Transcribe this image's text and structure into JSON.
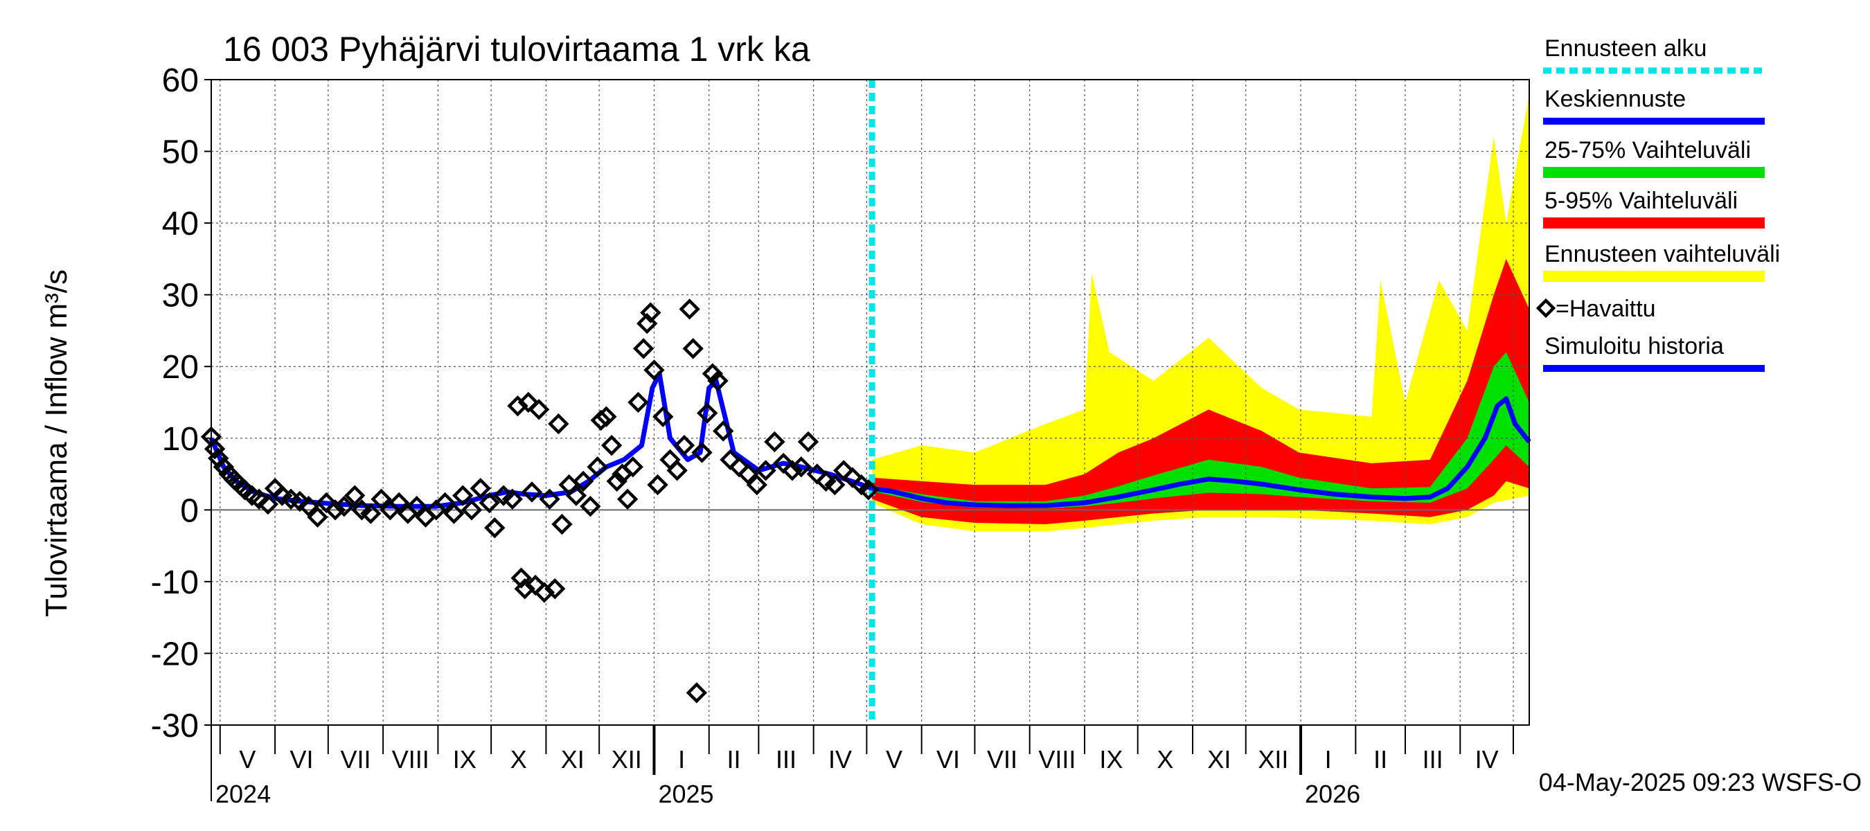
{
  "chart_data": {
    "type": "line",
    "title": "16 003 Pyhäjärvi tulovirtaama 1 vrk ka",
    "ylabel": "Tulovirtaama / Inflow    m³/s",
    "ylim": [
      -30,
      60
    ],
    "yticks": [
      -30,
      -20,
      -10,
      0,
      10,
      20,
      30,
      40,
      50,
      60
    ],
    "xlim": [
      "2024-04-26",
      "2026-05-10"
    ],
    "forecast_start": "2025-05-04",
    "grid": true,
    "month_labels": [
      "V",
      "VI",
      "VII",
      "VIII",
      "IX",
      "X",
      "XI",
      "XII",
      "I",
      "II",
      "III",
      "IV",
      "V",
      "VI",
      "VII",
      "VIII",
      "IX",
      "X",
      "XI",
      "XII",
      "I",
      "II",
      "III",
      "IV"
    ],
    "year_labels": [
      "2024",
      "2025",
      "2026"
    ],
    "timestamp": "04-May-2025 09:23 WSFS-O",
    "legend": {
      "placement": "right",
      "entries": [
        {
          "label": "Ennusteen alku",
          "color": "#00e5e5",
          "style": "dashed"
        },
        {
          "label": "Keskiennuste",
          "color": "#0000ff",
          "style": "line"
        },
        {
          "label": "25-75% Vaihteluväli",
          "color": "#00e000",
          "style": "band"
        },
        {
          "label": "5-95% Vaihteluväli",
          "color": "#ff0000",
          "style": "band"
        },
        {
          "label": "Ennusteen vaihteluväli",
          "color": "#ffff00",
          "style": "band"
        },
        {
          "label": "=Havaittu",
          "color": "#000000",
          "style": "diamond"
        },
        {
          "label": "Simuloitu historia",
          "color": "#0000ff",
          "style": "line"
        }
      ]
    },
    "series": [
      {
        "name": "Simuloitu historia",
        "color": "#0000ff",
        "points": [
          [
            "2024-04-26",
            10
          ],
          [
            "2024-05-03",
            6
          ],
          [
            "2024-05-10",
            4
          ],
          [
            "2024-05-20",
            2.5
          ],
          [
            "2024-06-01",
            1.6
          ],
          [
            "2024-06-15",
            1.2
          ],
          [
            "2024-07-01",
            0.9
          ],
          [
            "2024-07-20",
            0.6
          ],
          [
            "2024-08-10",
            0.5
          ],
          [
            "2024-08-31",
            0.5
          ],
          [
            "2024-09-15",
            1.0
          ],
          [
            "2024-09-30",
            2.0
          ],
          [
            "2024-10-10",
            2.5
          ],
          [
            "2024-10-20",
            2.2
          ],
          [
            "2024-11-01",
            2.0
          ],
          [
            "2024-11-15",
            2.5
          ],
          [
            "2024-11-25",
            4.0
          ],
          [
            "2024-12-05",
            6.0
          ],
          [
            "2024-12-15",
            7.0
          ],
          [
            "2024-12-25",
            9.0
          ],
          [
            "2024-12-31",
            17.0
          ],
          [
            "2025-01-04",
            19.0
          ],
          [
            "2025-01-10",
            10.0
          ],
          [
            "2025-01-20",
            7.0
          ],
          [
            "2025-01-27",
            8.0
          ],
          [
            "2025-02-01",
            17.0
          ],
          [
            "2025-02-05",
            18.0
          ],
          [
            "2025-02-15",
            8.0
          ],
          [
            "2025-03-01",
            5.5
          ],
          [
            "2025-03-15",
            6.5
          ],
          [
            "2025-03-25",
            6.0
          ],
          [
            "2025-04-10",
            5.0
          ],
          [
            "2025-04-25",
            3.8
          ],
          [
            "2025-05-04",
            3.0
          ]
        ]
      },
      {
        "name": "Keskiennuste",
        "color": "#0000ff",
        "points": [
          [
            "2025-05-04",
            3.0
          ],
          [
            "2025-05-15",
            2.6
          ],
          [
            "2025-06-01",
            1.6
          ],
          [
            "2025-06-15",
            1.0
          ],
          [
            "2025-07-01",
            0.7
          ],
          [
            "2025-07-20",
            0.6
          ],
          [
            "2025-08-10",
            0.6
          ],
          [
            "2025-09-01",
            1.0
          ],
          [
            "2025-09-20",
            1.8
          ],
          [
            "2025-10-10",
            2.8
          ],
          [
            "2025-10-25",
            3.6
          ],
          [
            "2025-11-10",
            4.3
          ],
          [
            "2025-11-25",
            4.0
          ],
          [
            "2025-12-10",
            3.6
          ],
          [
            "2025-12-31",
            2.8
          ],
          [
            "2026-01-20",
            2.2
          ],
          [
            "2026-02-10",
            1.8
          ],
          [
            "2026-03-01",
            1.6
          ],
          [
            "2026-03-15",
            1.8
          ],
          [
            "2026-03-25",
            3.0
          ],
          [
            "2026-04-05",
            6.0
          ],
          [
            "2026-04-15",
            10.0
          ],
          [
            "2026-04-22",
            14.5
          ],
          [
            "2026-04-27",
            15.5
          ],
          [
            "2026-05-02",
            12.0
          ],
          [
            "2026-05-10",
            9.5
          ]
        ]
      },
      {
        "name": "25-75% Vaihteluväli",
        "color": "#00e000",
        "upper": [
          [
            "2025-05-04",
            3.4
          ],
          [
            "2025-06-01",
            2.2
          ],
          [
            "2025-07-01",
            1.2
          ],
          [
            "2025-08-10",
            1.2
          ],
          [
            "2025-09-01",
            2.0
          ],
          [
            "2025-09-20",
            3.3
          ],
          [
            "2025-10-10",
            4.8
          ],
          [
            "2025-11-10",
            7.0
          ],
          [
            "2025-12-10",
            6.0
          ],
          [
            "2025-12-31",
            4.5
          ],
          [
            "2026-02-10",
            3.0
          ],
          [
            "2026-03-15",
            3.2
          ],
          [
            "2026-04-05",
            10.0
          ],
          [
            "2026-04-20",
            20.0
          ],
          [
            "2026-04-27",
            22.0
          ],
          [
            "2026-05-10",
            15.0
          ]
        ],
        "lower": [
          [
            "2025-05-04",
            2.6
          ],
          [
            "2025-06-01",
            1.1
          ],
          [
            "2025-07-01",
            0.3
          ],
          [
            "2025-08-10",
            0.2
          ],
          [
            "2025-09-01",
            0.5
          ],
          [
            "2025-09-20",
            1.0
          ],
          [
            "2025-10-10",
            1.6
          ],
          [
            "2025-11-10",
            2.4
          ],
          [
            "2025-12-10",
            2.2
          ],
          [
            "2025-12-31",
            1.8
          ],
          [
            "2026-02-10",
            1.2
          ],
          [
            "2026-03-15",
            1.0
          ],
          [
            "2026-04-05",
            3.0
          ],
          [
            "2026-04-20",
            7.0
          ],
          [
            "2026-04-27",
            9.0
          ],
          [
            "2026-05-10",
            6.0
          ]
        ]
      },
      {
        "name": "5-95% Vaihteluväli",
        "color": "#ff0000",
        "upper": [
          [
            "2025-05-04",
            4.5
          ],
          [
            "2025-06-01",
            4.0
          ],
          [
            "2025-07-01",
            3.5
          ],
          [
            "2025-08-10",
            3.5
          ],
          [
            "2025-09-01",
            5.0
          ],
          [
            "2025-09-20",
            8.0
          ],
          [
            "2025-10-10",
            10.0
          ],
          [
            "2025-11-10",
            14.0
          ],
          [
            "2025-12-10",
            11.0
          ],
          [
            "2025-12-31",
            8.0
          ],
          [
            "2026-02-10",
            6.5
          ],
          [
            "2026-03-15",
            7.0
          ],
          [
            "2026-04-05",
            18.0
          ],
          [
            "2026-04-20",
            30.0
          ],
          [
            "2026-04-27",
            35.0
          ],
          [
            "2026-05-10",
            28.0
          ]
        ],
        "lower": [
          [
            "2025-05-04",
            1.5
          ],
          [
            "2025-06-01",
            -1.0
          ],
          [
            "2025-07-01",
            -1.8
          ],
          [
            "2025-08-10",
            -2.0
          ],
          [
            "2025-09-01",
            -1.5
          ],
          [
            "2025-09-20",
            -1.0
          ],
          [
            "2025-10-10",
            -0.5
          ],
          [
            "2025-11-10",
            0.0
          ],
          [
            "2025-12-10",
            0.0
          ],
          [
            "2025-12-31",
            0.0
          ],
          [
            "2026-02-10",
            -0.5
          ],
          [
            "2026-03-15",
            -1.0
          ],
          [
            "2026-04-05",
            0.0
          ],
          [
            "2026-04-20",
            2.0
          ],
          [
            "2026-04-27",
            4.0
          ],
          [
            "2026-05-10",
            3.0
          ]
        ]
      },
      {
        "name": "Ennusteen vaihteluväli",
        "color": "#ffff00",
        "upper": [
          [
            "2025-05-04",
            7.0
          ],
          [
            "2025-06-01",
            9.0
          ],
          [
            "2025-07-01",
            8.0
          ],
          [
            "2025-08-10",
            12.0
          ],
          [
            "2025-09-01",
            14.0
          ],
          [
            "2025-09-05",
            33.0
          ],
          [
            "2025-09-15",
            22.0
          ],
          [
            "2025-10-10",
            18.0
          ],
          [
            "2025-11-10",
            24.0
          ],
          [
            "2025-12-10",
            17.0
          ],
          [
            "2025-12-31",
            14.0
          ],
          [
            "2026-02-10",
            13.0
          ],
          [
            "2026-02-15",
            32.0
          ],
          [
            "2026-03-01",
            15.0
          ],
          [
            "2026-03-20",
            32.0
          ],
          [
            "2026-04-05",
            25.0
          ],
          [
            "2026-04-20",
            52.0
          ],
          [
            "2026-04-27",
            40.0
          ],
          [
            "2026-05-10",
            58.0
          ]
        ],
        "lower": [
          [
            "2025-05-04",
            1.0
          ],
          [
            "2025-06-01",
            -2.0
          ],
          [
            "2025-07-01",
            -3.0
          ],
          [
            "2025-08-10",
            -3.0
          ],
          [
            "2025-09-01",
            -2.5
          ],
          [
            "2025-10-10",
            -1.5
          ],
          [
            "2025-11-10",
            -1.0
          ],
          [
            "2025-12-10",
            -1.0
          ],
          [
            "2026-02-10",
            -1.5
          ],
          [
            "2026-03-15",
            -2.0
          ],
          [
            "2026-04-05",
            -1.0
          ],
          [
            "2026-04-20",
            1.0
          ],
          [
            "2026-05-10",
            2.0
          ]
        ]
      },
      {
        "name": "=Havaittu",
        "color": "#000000",
        "type": "scatter",
        "points": [
          [
            "2024-04-26",
            10.2
          ],
          [
            "2024-04-28",
            8.5
          ],
          [
            "2024-04-30",
            7.2
          ],
          [
            "2024-05-03",
            6.0
          ],
          [
            "2024-05-06",
            5.0
          ],
          [
            "2024-05-09",
            4.2
          ],
          [
            "2024-05-12",
            3.5
          ],
          [
            "2024-05-15",
            2.8
          ],
          [
            "2024-05-19",
            2.0
          ],
          [
            "2024-05-23",
            1.5
          ],
          [
            "2024-05-28",
            0.8
          ],
          [
            "2024-06-01",
            3.0
          ],
          [
            "2024-06-05",
            2.0
          ],
          [
            "2024-06-10",
            1.5
          ],
          [
            "2024-06-15",
            1.2
          ],
          [
            "2024-06-20",
            0.5
          ],
          [
            "2024-06-25",
            -1.0
          ],
          [
            "2024-06-30",
            1.0
          ],
          [
            "2024-07-05",
            0.0
          ],
          [
            "2024-07-10",
            0.5
          ],
          [
            "2024-07-16",
            2.0
          ],
          [
            "2024-07-20",
            0.0
          ],
          [
            "2024-07-25",
            -0.5
          ],
          [
            "2024-07-31",
            1.5
          ],
          [
            "2024-08-05",
            0.0
          ],
          [
            "2024-08-10",
            1.0
          ],
          [
            "2024-08-15",
            -0.5
          ],
          [
            "2024-08-20",
            0.5
          ],
          [
            "2024-08-25",
            -1.0
          ],
          [
            "2024-08-31",
            0.0
          ],
          [
            "2024-09-05",
            1.0
          ],
          [
            "2024-09-10",
            -0.5
          ],
          [
            "2024-09-15",
            2.0
          ],
          [
            "2024-09-20",
            0.0
          ],
          [
            "2024-09-25",
            3.0
          ],
          [
            "2024-09-30",
            1.0
          ],
          [
            "2024-10-03",
            -2.5
          ],
          [
            "2024-10-08",
            2.0
          ],
          [
            "2024-10-13",
            1.5
          ],
          [
            "2024-10-16",
            14.5
          ],
          [
            "2024-10-18",
            -9.5
          ],
          [
            "2024-10-20",
            -11.0
          ],
          [
            "2024-10-22",
            15.0
          ],
          [
            "2024-10-24",
            2.5
          ],
          [
            "2024-10-26",
            -10.5
          ],
          [
            "2024-10-28",
            14.0
          ],
          [
            "2024-10-31",
            -11.5
          ],
          [
            "2024-11-03",
            1.5
          ],
          [
            "2024-11-06",
            -11.0
          ],
          [
            "2024-11-08",
            12.0
          ],
          [
            "2024-11-10",
            -2.0
          ],
          [
            "2024-11-14",
            3.5
          ],
          [
            "2024-11-18",
            2.0
          ],
          [
            "2024-11-22",
            4.0
          ],
          [
            "2024-11-26",
            0.5
          ],
          [
            "2024-11-30",
            6.0
          ],
          [
            "2024-12-02",
            12.5
          ],
          [
            "2024-12-05",
            13.0
          ],
          [
            "2024-12-08",
            9.0
          ],
          [
            "2024-12-11",
            4.0
          ],
          [
            "2024-12-14",
            5.0
          ],
          [
            "2024-12-17",
            1.5
          ],
          [
            "2024-12-20",
            6.0
          ],
          [
            "2024-12-23",
            15.0
          ],
          [
            "2024-12-26",
            22.5
          ],
          [
            "2024-12-28",
            26.0
          ],
          [
            "2024-12-30",
            27.5
          ],
          [
            "2025-01-01",
            19.5
          ],
          [
            "2025-01-03",
            3.5
          ],
          [
            "2025-01-06",
            13.0
          ],
          [
            "2025-01-10",
            7.0
          ],
          [
            "2025-01-14",
            5.5
          ],
          [
            "2025-01-18",
            9.0
          ],
          [
            "2025-01-21",
            28.0
          ],
          [
            "2025-01-23",
            22.5
          ],
          [
            "2025-01-25",
            -25.5
          ],
          [
            "2025-01-28",
            8.0
          ],
          [
            "2025-01-31",
            13.5
          ],
          [
            "2025-02-03",
            19.0
          ],
          [
            "2025-02-06",
            18.0
          ],
          [
            "2025-02-09",
            11.0
          ],
          [
            "2025-02-13",
            7.0
          ],
          [
            "2025-02-18",
            6.0
          ],
          [
            "2025-02-23",
            5.0
          ],
          [
            "2025-02-28",
            3.5
          ],
          [
            "2025-03-05",
            5.5
          ],
          [
            "2025-03-10",
            9.5
          ],
          [
            "2025-03-15",
            6.5
          ],
          [
            "2025-03-20",
            5.5
          ],
          [
            "2025-03-25",
            6.0
          ],
          [
            "2025-03-29",
            9.5
          ],
          [
            "2025-04-03",
            5.0
          ],
          [
            "2025-04-08",
            4.0
          ],
          [
            "2025-04-13",
            3.5
          ],
          [
            "2025-04-18",
            5.5
          ],
          [
            "2025-04-23",
            4.5
          ],
          [
            "2025-04-28",
            3.5
          ],
          [
            "2025-05-02",
            2.8
          ]
        ]
      }
    ]
  }
}
